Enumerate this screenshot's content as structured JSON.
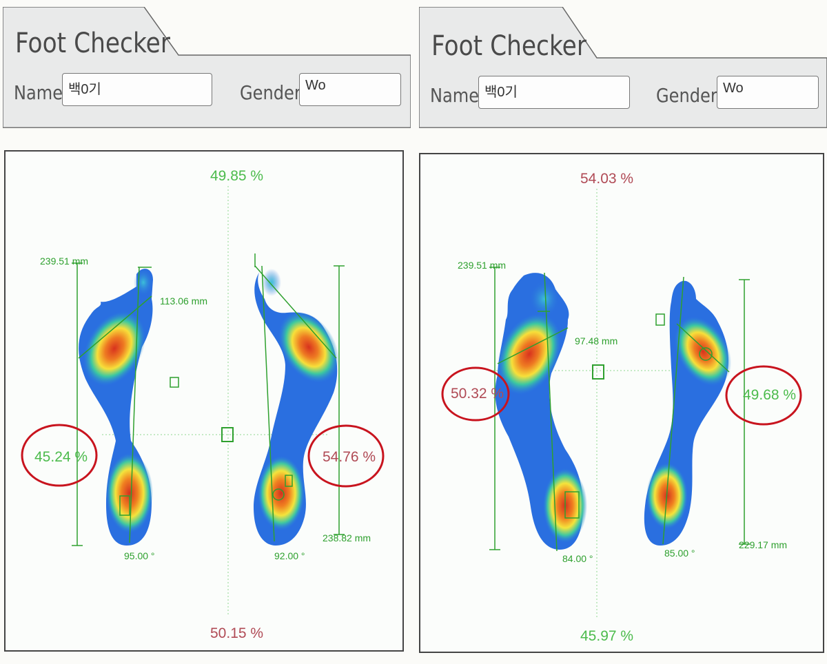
{
  "colors": {
    "guide_green": "#2ea02e",
    "pct_green": "#4cbb4c",
    "pct_red": "#b04a55",
    "circle_red": "#c8141e"
  },
  "panels": [
    {
      "app_title": "Foot Checker",
      "name_label": "Name",
      "name_value": "백0기",
      "gender_label": "Gender",
      "gender_value": "Wo",
      "top_percent": "49.85 %",
      "bottom_percent": "50.15 %",
      "left_percent": "45.24 %",
      "right_percent": "54.76 %",
      "left_length": "239.51 mm",
      "right_length": "238.82 mm",
      "width_value": "113.06 mm",
      "left_angle": "95.00 °",
      "right_angle": "92.00 °"
    },
    {
      "app_title": "Foot Checker",
      "name_label": "Name",
      "name_value": "백0기",
      "gender_label": "Gender",
      "gender_value": "Wo",
      "top_percent": "54.03 %",
      "bottom_percent": "45.97 %",
      "left_percent": "50.32 %",
      "right_percent": "49.68 %",
      "left_length": "239.51 mm",
      "right_length": "229.17 mm",
      "width_value": "97.48 mm",
      "left_angle": "84.00 °",
      "right_angle": "85.00 °"
    }
  ]
}
